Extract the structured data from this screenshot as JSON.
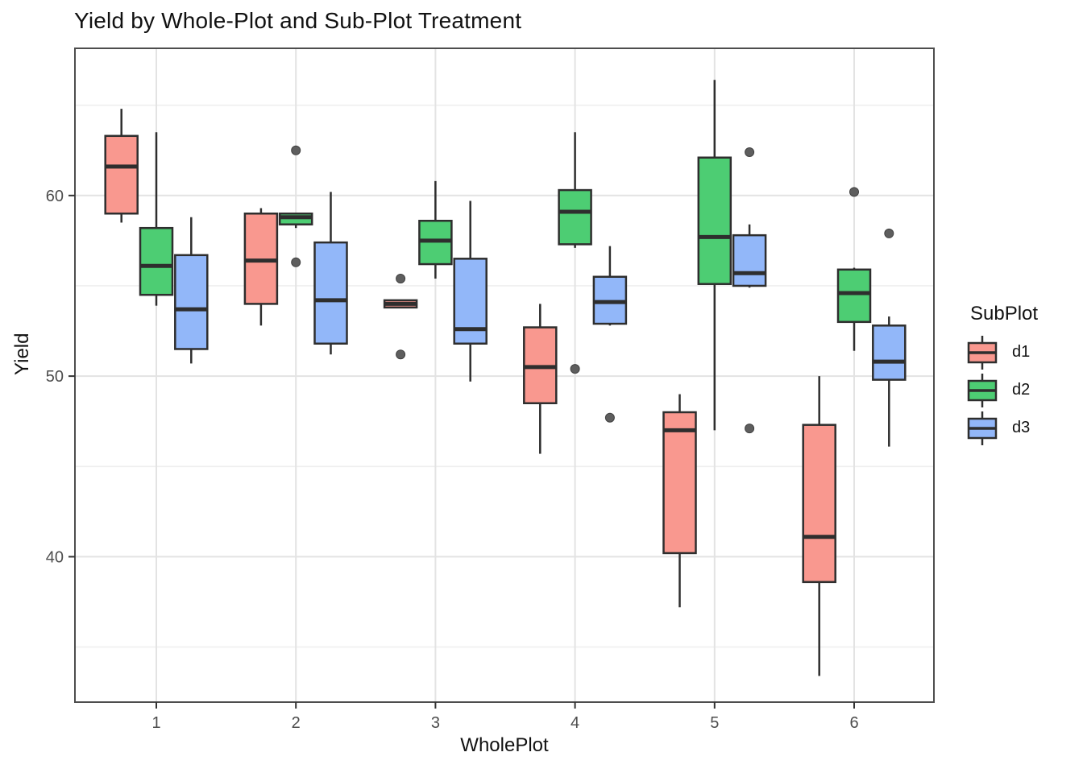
{
  "title": "Yield by Whole-Plot and Sub-Plot Treatment",
  "chart_data": {
    "type": "boxplot",
    "title": "Yield by Whole-Plot and Sub-Plot Treatment",
    "xlabel": "WholePlot",
    "ylabel": "Yield",
    "categories": [
      "1",
      "2",
      "3",
      "4",
      "5",
      "6"
    ],
    "y_ticks": [
      40,
      50,
      60
    ],
    "y_minor_gridlines": [
      35,
      45,
      55,
      65
    ],
    "ylim": [
      31.95,
      68.15
    ],
    "grid": "on",
    "legend_position": "right",
    "legend_title": "SubPlot",
    "series": [
      {
        "name": "d1",
        "color": "#F9988F",
        "boxes": [
          {
            "category": "1",
            "min": 58.5,
            "q1": 59.0,
            "med": 61.6,
            "q3": 63.3,
            "max": 64.8,
            "outliers": []
          },
          {
            "category": "2",
            "min": 52.8,
            "q1": 54.0,
            "med": 56.4,
            "q3": 59.0,
            "max": 59.3,
            "outliers": []
          },
          {
            "category": "3",
            "min": 53.8,
            "q1": 53.8,
            "med": 54.0,
            "q3": 54.2,
            "max": 54.2,
            "outliers": [
              55.4,
              51.2
            ]
          },
          {
            "category": "4",
            "min": 45.7,
            "q1": 48.5,
            "med": 50.5,
            "q3": 52.7,
            "max": 54.0,
            "outliers": []
          },
          {
            "category": "5",
            "min": 37.2,
            "q1": 40.2,
            "med": 47.0,
            "q3": 48.0,
            "max": 49.0,
            "outliers": []
          },
          {
            "category": "6",
            "min": 33.4,
            "q1": 38.6,
            "med": 41.1,
            "q3": 47.3,
            "max": 50.0,
            "outliers": []
          }
        ]
      },
      {
        "name": "d2",
        "color": "#4DCD73",
        "boxes": [
          {
            "category": "1",
            "min": 53.9,
            "q1": 54.5,
            "med": 56.1,
            "q3": 58.2,
            "max": 63.5,
            "outliers": []
          },
          {
            "category": "2",
            "min": 58.2,
            "q1": 58.4,
            "med": 58.8,
            "q3": 59.0,
            "max": 59.0,
            "outliers": [
              62.5,
              56.3
            ]
          },
          {
            "category": "3",
            "min": 55.4,
            "q1": 56.2,
            "med": 57.5,
            "q3": 58.6,
            "max": 60.8,
            "outliers": []
          },
          {
            "category": "4",
            "min": 57.1,
            "q1": 57.3,
            "med": 59.1,
            "q3": 60.3,
            "max": 63.5,
            "outliers": [
              50.4
            ]
          },
          {
            "category": "5",
            "min": 47.0,
            "q1": 55.1,
            "med": 57.7,
            "q3": 62.1,
            "max": 66.4,
            "outliers": []
          },
          {
            "category": "6",
            "min": 51.4,
            "q1": 53.0,
            "med": 54.6,
            "q3": 55.9,
            "max": 56.0,
            "outliers": [
              60.2
            ]
          }
        ]
      },
      {
        "name": "d3",
        "color": "#92B7F9",
        "boxes": [
          {
            "category": "1",
            "min": 50.7,
            "q1": 51.5,
            "med": 53.7,
            "q3": 56.7,
            "max": 58.8,
            "outliers": []
          },
          {
            "category": "2",
            "min": 51.2,
            "q1": 51.8,
            "med": 54.2,
            "q3": 57.4,
            "max": 60.2,
            "outliers": []
          },
          {
            "category": "3",
            "min": 49.7,
            "q1": 51.8,
            "med": 52.6,
            "q3": 56.5,
            "max": 59.7,
            "outliers": []
          },
          {
            "category": "4",
            "min": 52.8,
            "q1": 52.9,
            "med": 54.1,
            "q3": 55.5,
            "max": 57.2,
            "outliers": [
              47.7
            ]
          },
          {
            "category": "5",
            "min": 54.9,
            "q1": 55.0,
            "med": 55.7,
            "q3": 57.8,
            "max": 58.4,
            "outliers": [
              62.4,
              47.1
            ]
          },
          {
            "category": "6",
            "min": 46.1,
            "q1": 49.8,
            "med": 50.8,
            "q3": 52.8,
            "max": 53.3,
            "outliers": [
              57.9
            ]
          }
        ]
      }
    ]
  },
  "legend": {
    "title": "SubPlot",
    "entries": [
      {
        "label": "d1",
        "color": "#F9988F"
      },
      {
        "label": "d2",
        "color": "#4DCD73"
      },
      {
        "label": "d3",
        "color": "#92B7F9"
      }
    ]
  },
  "colors": {
    "box_stroke": "#2E2E2E",
    "median_stroke": "#2E2E2E",
    "outlier_fill": "#5E5E5E",
    "outlier_stroke": "#404040",
    "grid_major": "#E3E3E3",
    "grid_minor": "#EFEFEF",
    "panel_border": "#4D4D4D",
    "tick_mark": "#333333",
    "tick_label": "#4D4D4D",
    "background": "#FFFFFF"
  }
}
